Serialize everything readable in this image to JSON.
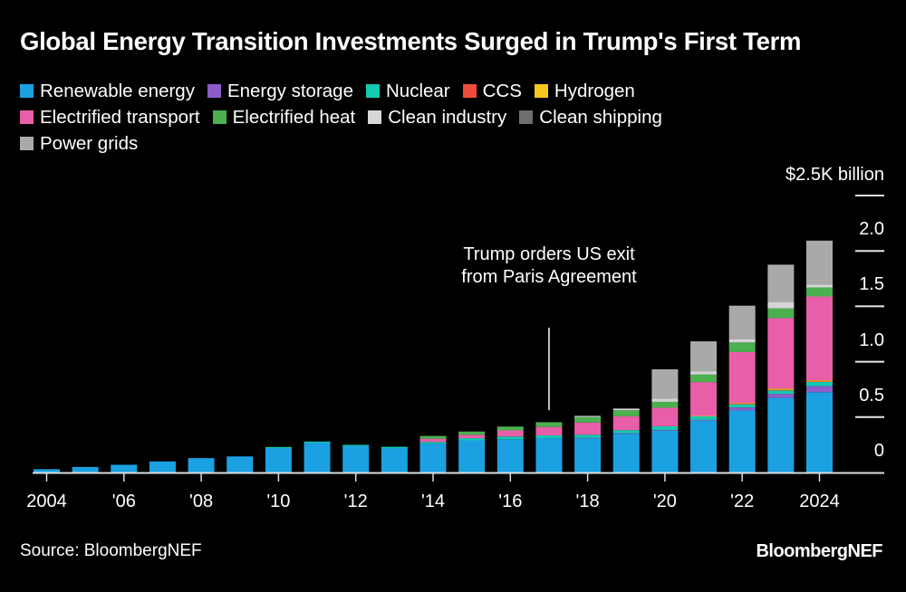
{
  "title": "Global Energy Transition Investments Surged in Trump's First Term",
  "source": "Source: BloombergNEF",
  "brand": "BloombergNEF",
  "legend": {
    "rows": [
      [
        0,
        1,
        2,
        3,
        4
      ],
      [
        5,
        6,
        7,
        8
      ],
      [
        9
      ]
    ]
  },
  "chart_data": {
    "type": "bar",
    "stacked": true,
    "title": "Global Energy Transition Investments Surged in Trump's First Term",
    "xlabel": "",
    "ylabel": "$K billion",
    "y_unit_label": "$2.5K billion",
    "ylim": [
      0,
      2.5
    ],
    "yticks": [
      0,
      0.5,
      1.0,
      1.5,
      2.0,
      2.5
    ],
    "ytick_labels": [
      "0",
      "0.5",
      "1.0",
      "1.5",
      "2.0",
      "$2.5K billion"
    ],
    "grid": true,
    "legend_position": "top-left",
    "categories": [
      "2004",
      "2005",
      "2006",
      "2007",
      "2008",
      "2009",
      "2010",
      "2011",
      "2012",
      "2013",
      "2014",
      "2015",
      "2016",
      "2017",
      "2018",
      "2019",
      "2020",
      "2021",
      "2022",
      "2023",
      "2024"
    ],
    "xtick_labels": [
      {
        "category": "2004",
        "label": "2004"
      },
      {
        "category": "2006",
        "label": "'06"
      },
      {
        "category": "2008",
        "label": "'08"
      },
      {
        "category": "2010",
        "label": "'10"
      },
      {
        "category": "2012",
        "label": "'12"
      },
      {
        "category": "2014",
        "label": "'14"
      },
      {
        "category": "2016",
        "label": "'16"
      },
      {
        "category": "2018",
        "label": "'18"
      },
      {
        "category": "2020",
        "label": "'20"
      },
      {
        "category": "2022",
        "label": "'22"
      },
      {
        "category": "2024",
        "label": "2024"
      }
    ],
    "series": [
      {
        "name": "Renewable energy",
        "color": "#1ba1e2",
        "values": [
          0.03,
          0.05,
          0.07,
          0.1,
          0.13,
          0.145,
          0.22,
          0.27,
          0.24,
          0.22,
          0.26,
          0.29,
          0.3,
          0.31,
          0.31,
          0.35,
          0.378,
          0.466,
          0.56,
          0.675,
          0.725
        ]
      },
      {
        "name": "Energy storage",
        "color": "#8c5cc7",
        "values": [
          0,
          0,
          0,
          0,
          0,
          0,
          0,
          0,
          0,
          0,
          0,
          0,
          0,
          0,
          0.003,
          0.005,
          0.006,
          0.008,
          0.027,
          0.035,
          0.054
        ]
      },
      {
        "name": "Nuclear",
        "color": "#13c9b0",
        "values": [
          0,
          0,
          0,
          0,
          0,
          0,
          0.01,
          0.01,
          0.01,
          0.012,
          0.015,
          0.02,
          0.025,
          0.025,
          0.028,
          0.027,
          0.033,
          0.035,
          0.03,
          0.03,
          0.038
        ]
      },
      {
        "name": "CCS",
        "color": "#f04b3a",
        "values": [
          0,
          0,
          0,
          0,
          0,
          0,
          0,
          0,
          0,
          0,
          0,
          0,
          0,
          0,
          0,
          0,
          0,
          0,
          0.002,
          0.005,
          0.005
        ]
      },
      {
        "name": "Hydrogen",
        "color": "#f6c61c",
        "values": [
          0,
          0,
          0,
          0,
          0,
          0,
          0,
          0,
          0,
          0,
          0,
          0,
          0,
          0,
          0,
          0,
          0,
          0.002,
          0.008,
          0.012,
          0.01
        ]
      },
      {
        "name": "Electrified transport",
        "color": "#e95ea8",
        "values": [
          0,
          0,
          0,
          0,
          0,
          0,
          0,
          0,
          0,
          0,
          0.03,
          0.03,
          0.055,
          0.076,
          0.11,
          0.125,
          0.167,
          0.305,
          0.46,
          0.637,
          0.757
        ]
      },
      {
        "name": "Electrified heat",
        "color": "#4caf50",
        "values": [
          0,
          0,
          0,
          0,
          0,
          0,
          0,
          0,
          0,
          0,
          0.025,
          0.03,
          0.035,
          0.043,
          0.05,
          0.055,
          0.054,
          0.068,
          0.087,
          0.087,
          0.082
        ]
      },
      {
        "name": "Clean industry",
        "color": "#d6d6d6",
        "values": [
          0,
          0,
          0,
          0,
          0,
          0,
          0,
          0,
          0,
          0,
          0,
          0,
          0,
          0,
          0.01,
          0.015,
          0.028,
          0.027,
          0.027,
          0.055,
          0.027
        ]
      },
      {
        "name": "Clean shipping",
        "color": "#6e6e6e",
        "values": [
          0,
          0,
          0,
          0,
          0,
          0,
          0,
          0,
          0,
          0,
          0,
          0,
          0,
          0,
          0,
          0,
          0,
          0,
          0,
          0,
          0
        ]
      },
      {
        "name": "Power grids",
        "color": "#a9a9a9",
        "values": [
          0,
          0,
          0,
          0,
          0,
          0,
          0,
          0,
          0,
          0,
          0,
          0,
          0,
          0,
          0,
          0,
          0.266,
          0.273,
          0.305,
          0.34,
          0.395
        ]
      }
    ],
    "annotations": [
      {
        "category": "2017",
        "text": "Trump orders US exit from Paris Agreement"
      }
    ]
  }
}
